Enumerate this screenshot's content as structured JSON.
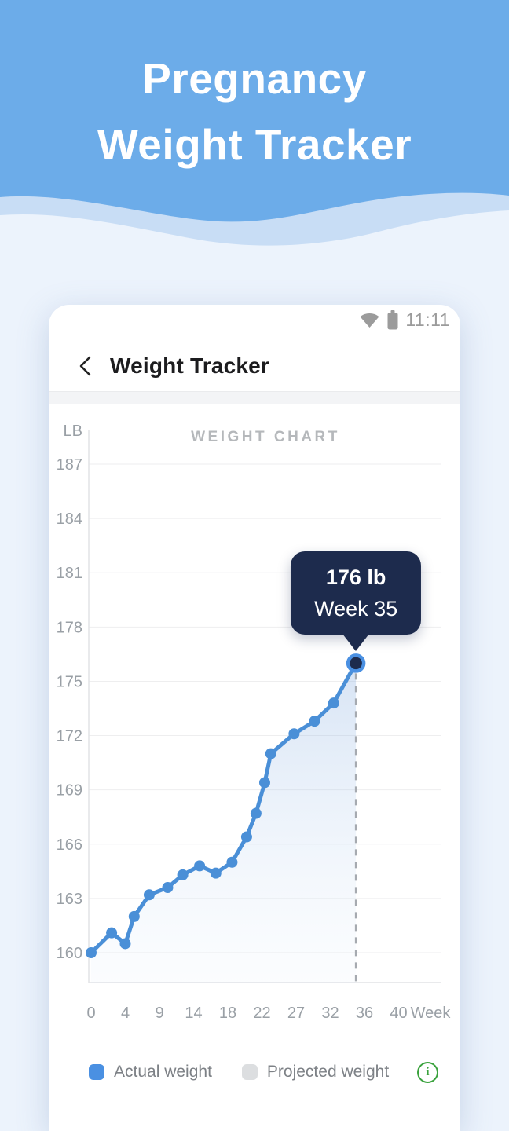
{
  "header": {
    "title_line1": "Pregnancy",
    "title_line2": "Weight Tracker"
  },
  "status_bar": {
    "time": "11:11"
  },
  "nav": {
    "title": "Weight Tracker"
  },
  "chart_data": {
    "type": "line",
    "title": "WEIGHT CHART",
    "y_unit": "LB",
    "x_label": "Week",
    "y_ticks": [
      187,
      184,
      181,
      178,
      175,
      172,
      169,
      166,
      163,
      160
    ],
    "x_ticks": [
      0,
      4,
      9,
      14,
      18,
      22,
      27,
      32,
      36,
      40
    ],
    "ylim": [
      158.5,
      188.5
    ],
    "xlim": [
      0,
      40
    ],
    "grid": true,
    "legend_position": "bottom",
    "series": [
      {
        "name": "Actual weight",
        "x_weeks": [
          0,
          2.4,
          4,
          5.3,
          7.5,
          10.2,
          12.4,
          14.7,
          16.6,
          18.5,
          20.2,
          21.3,
          22.4,
          23.3,
          26.7,
          29.7,
          32.4,
          35
        ],
        "y_lb": [
          160,
          161.1,
          160.5,
          162,
          163.2,
          163.6,
          164.3,
          164.8,
          164.4,
          165,
          166.4,
          167.7,
          169.4,
          171,
          172.1,
          172.8,
          173.8,
          176
        ]
      }
    ],
    "highlight": {
      "week": 35,
      "lb": 176
    },
    "tooltip": {
      "line1": "176 lb",
      "line2": "Week 35"
    },
    "legend": {
      "actual": "Actual weight",
      "projected": "Projected weight"
    },
    "colors": {
      "line": "#4a8fd7",
      "highlight_fill": "#1d2b4d",
      "highlight_ring": "#4a90e2",
      "dashed": "#a6aab0",
      "grid": "#eeeeef",
      "axis": "#e2e3e6",
      "axis_text": "#9aa0a6",
      "tooltip_bg": "#1d2b4d",
      "legend_blue": "#4a90e2",
      "legend_gray": "#dcdee0",
      "info_green": "#3aa23d",
      "header_blue": "#6cace9",
      "wave_band": "#c8ddf5",
      "page_bg": "#ecf3fc"
    }
  },
  "icons": {
    "info_glyph": "i"
  }
}
